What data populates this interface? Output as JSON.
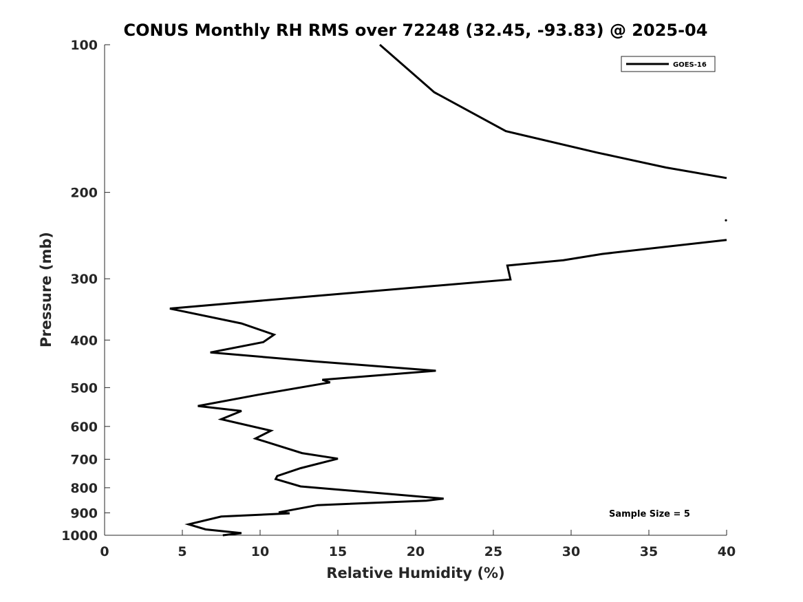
{
  "chart_data": {
    "type": "line",
    "title": "CONUS Monthly RH RMS over 72248 (32.45, -93.83) @ 2025-04",
    "xlabel": "Relative Humidity (%)",
    "ylabel": "Pressure (mb)",
    "xlim": [
      0,
      40
    ],
    "ylim": [
      1000,
      100
    ],
    "yscale": "log",
    "y_reversed": true,
    "xticks": [
      0,
      5,
      10,
      15,
      20,
      25,
      30,
      35,
      40
    ],
    "yticks": [
      100,
      200,
      300,
      400,
      500,
      600,
      700,
      800,
      900,
      1000
    ],
    "grid": false,
    "legend_position": "top-right",
    "series": [
      {
        "name": "GOES-16",
        "color": "#000000",
        "segments": [
          [
            [
              17.7,
              100
            ],
            [
              21.2,
              125
            ],
            [
              25.8,
              150
            ],
            [
              31.7,
              166
            ],
            [
              36.1,
              178
            ],
            [
              40,
              187
            ]
          ],
          [
            [
              40,
              250
            ],
            [
              32,
              267
            ],
            [
              29.5,
              275
            ],
            [
              25.9,
              282
            ],
            [
              26.1,
              301
            ],
            [
              13.2,
              326
            ],
            [
              4.2,
              345
            ],
            [
              8.8,
              370
            ],
            [
              10.9,
              390
            ],
            [
              10.2,
              404
            ],
            [
              6.8,
              424
            ],
            [
              13.5,
              442
            ],
            [
              21.3,
              462
            ],
            [
              14,
              482
            ],
            [
              14.5,
              488
            ],
            [
              9.9,
              517
            ],
            [
              6,
              545
            ],
            [
              8.8,
              558
            ],
            [
              7.5,
              580
            ],
            [
              10.7,
              612
            ],
            [
              9.7,
              635
            ],
            [
              12.7,
              680
            ],
            [
              15,
              698
            ],
            [
              12.6,
              730
            ],
            [
              11.1,
              757
            ],
            [
              11,
              768
            ],
            [
              12.6,
              795
            ],
            [
              15.6,
              810
            ],
            [
              21.8,
              842
            ],
            [
              20.7,
              850
            ],
            [
              13.7,
              868
            ],
            [
              11.2,
              898
            ],
            [
              11.9,
              902
            ],
            [
              7.5,
              916
            ],
            [
              5.4,
              950
            ],
            [
              6.5,
              973
            ],
            [
              8.8,
              990
            ],
            [
              7.6,
              1000
            ]
          ]
        ],
        "isolated_points": [
          [
            40,
            228
          ]
        ]
      }
    ],
    "annotations": [
      "Sample Size = 5"
    ]
  }
}
